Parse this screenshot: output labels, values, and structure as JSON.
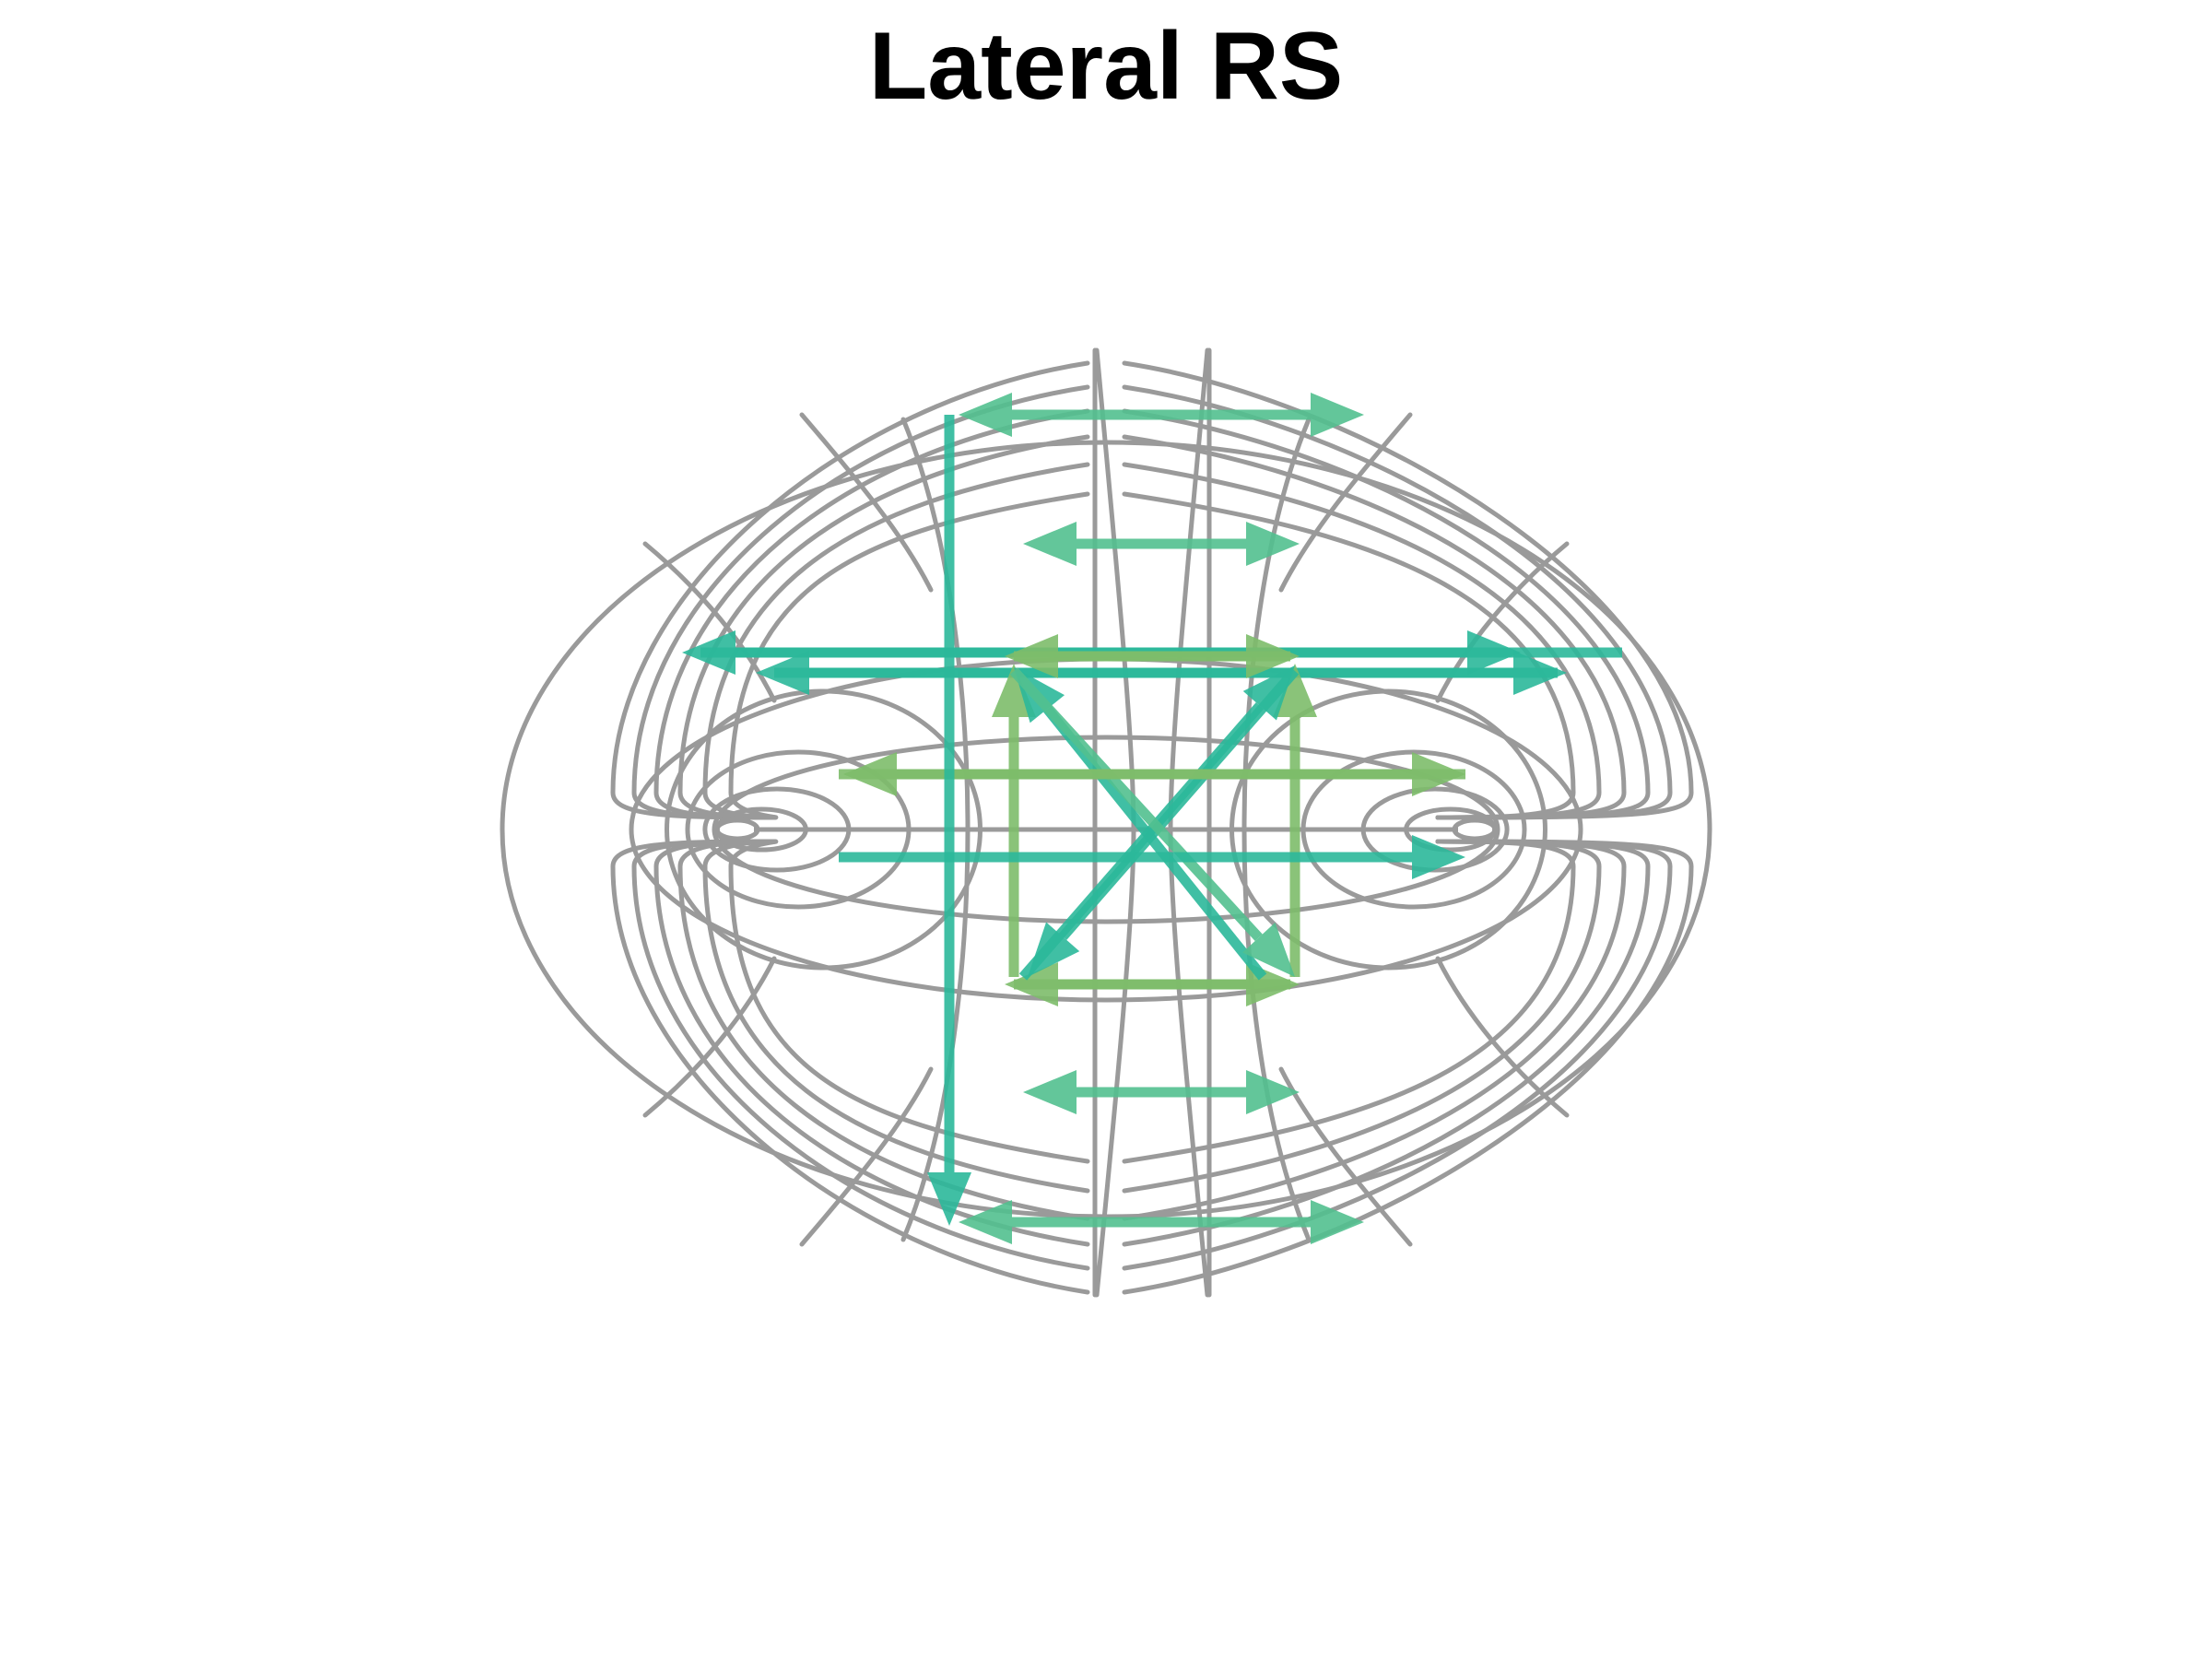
{
  "title": "Lateral RS",
  "colors": {
    "grid": "#9a9a9a",
    "background": "#ffffff",
    "title": "#000000",
    "arrow_teal": "#2bb89a",
    "arrow_mint": "#52c08f",
    "arrow_lime": "#7dbd6a"
  },
  "arrows": [
    {
      "id": "top-row-right",
      "color": "arrow_mint"
    },
    {
      "id": "top-row-left",
      "color": "arrow_mint"
    },
    {
      "id": "second-row-right",
      "color": "arrow_mint"
    },
    {
      "id": "second-row-left",
      "color": "arrow_mint"
    },
    {
      "id": "third-row-left-outer",
      "color": "arrow_teal"
    },
    {
      "id": "third-row-right-outer",
      "color": "arrow_teal"
    },
    {
      "id": "third-row-left-inner",
      "color": "arrow_teal"
    },
    {
      "id": "third-row-right-inner",
      "color": "arrow_teal"
    },
    {
      "id": "square-top-left",
      "color": "arrow_lime"
    },
    {
      "id": "square-top-right",
      "color": "arrow_lime"
    },
    {
      "id": "square-bottom-left",
      "color": "arrow_lime"
    },
    {
      "id": "square-bottom-right",
      "color": "arrow_lime"
    },
    {
      "id": "square-left-up",
      "color": "arrow_lime"
    },
    {
      "id": "square-right-up",
      "color": "arrow_lime"
    },
    {
      "id": "diagonal-to-top-left",
      "color": "arrow_teal"
    },
    {
      "id": "diagonal-to-top-right",
      "color": "arrow_teal"
    },
    {
      "id": "diagonal-to-bottom-left",
      "color": "arrow_teal"
    },
    {
      "id": "diagonal-to-bottom-right",
      "color": "arrow_mint"
    },
    {
      "id": "middle-row-right",
      "color": "arrow_lime"
    },
    {
      "id": "middle-row-left",
      "color": "arrow_lime"
    },
    {
      "id": "lower-middle-row-right",
      "color": "arrow_teal"
    },
    {
      "id": "lower-row-right",
      "color": "arrow_mint"
    },
    {
      "id": "lower-row-left",
      "color": "arrow_mint"
    },
    {
      "id": "bottom-row-right",
      "color": "arrow_mint"
    },
    {
      "id": "bottom-row-left",
      "color": "arrow_mint"
    },
    {
      "id": "left-vertical-down",
      "color": "arrow_teal"
    }
  ]
}
